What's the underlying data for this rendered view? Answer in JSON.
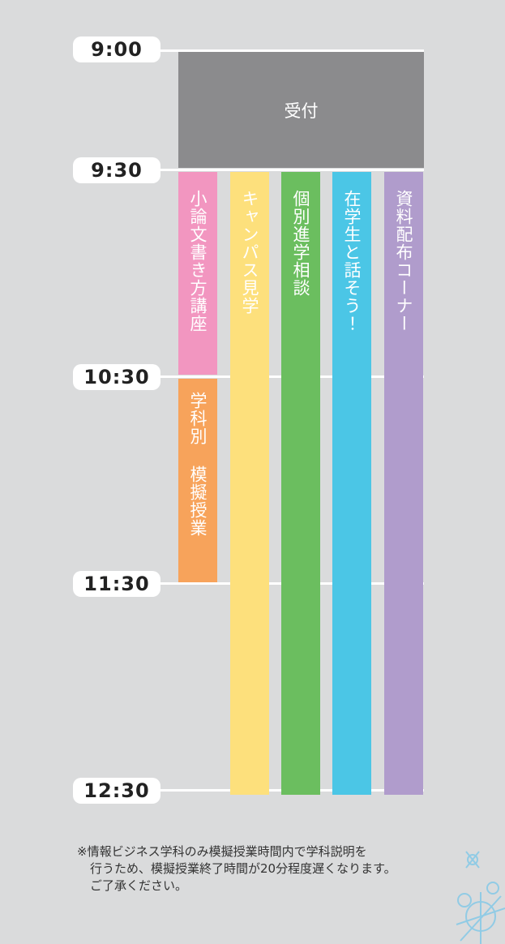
{
  "times": [
    "9:00",
    "9:30",
    "10:30",
    "11:30",
    "12:30"
  ],
  "reception": "受付",
  "sessions": [
    "小論文書き方講座",
    "学科別 模擬授業",
    "キャンパス見学",
    "個別進学相談",
    "在学生と話そう！",
    "資料配布コーナー"
  ],
  "note": [
    "※情報ビジネス学科のみ模擬授業時間内で学科説明を",
    "行うため、模擬授業終了時間が20分程度遅くなります。",
    "ご了承ください。"
  ]
}
